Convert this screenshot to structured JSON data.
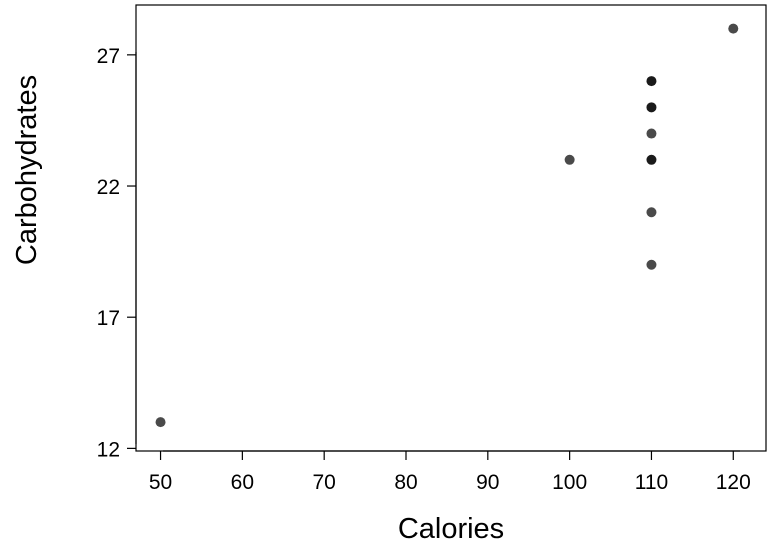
{
  "chart_data": {
    "type": "scatter",
    "title": "",
    "xlabel": "Calories",
    "ylabel": "Carbohydrates",
    "xlim": [
      47,
      124
    ],
    "ylim": [
      11.9,
      28.9
    ],
    "x_ticks": [
      50,
      60,
      70,
      80,
      90,
      100,
      110,
      120
    ],
    "y_ticks": [
      12,
      17,
      22,
      27
    ],
    "x_tick_labels": [
      "50",
      "60",
      "70",
      "80",
      "90",
      "100",
      "110",
      "120"
    ],
    "y_tick_labels": [
      "12",
      "17",
      "22",
      "27"
    ],
    "grid": false,
    "point_color": "#4a4a4a",
    "overlap_point_color": "#1a1a1a",
    "points": [
      {
        "x": 50,
        "y": 13,
        "count": 1
      },
      {
        "x": 100,
        "y": 23,
        "count": 1
      },
      {
        "x": 110,
        "y": 26,
        "count": 3
      },
      {
        "x": 110,
        "y": 25,
        "count": 3
      },
      {
        "x": 110,
        "y": 24,
        "count": 1
      },
      {
        "x": 110,
        "y": 23,
        "count": 2
      },
      {
        "x": 110,
        "y": 21,
        "count": 1
      },
      {
        "x": 110,
        "y": 19,
        "count": 1
      },
      {
        "x": 120,
        "y": 28,
        "count": 1
      }
    ]
  }
}
